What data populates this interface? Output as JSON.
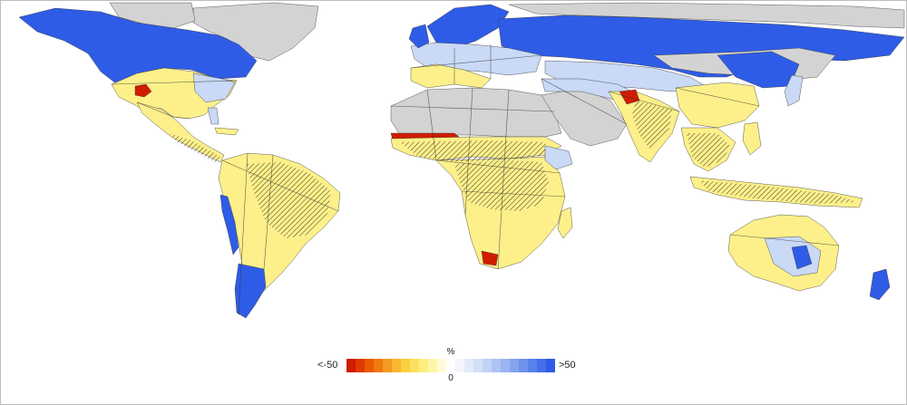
{
  "legend": {
    "unit": "%",
    "min_label": "<-50",
    "max_label": ">50",
    "zero_label": "0",
    "colors": [
      "#d01c00",
      "#e03800",
      "#ea5a00",
      "#f07a10",
      "#f59a20",
      "#f8b830",
      "#fbcf40",
      "#fde060",
      "#fdee80",
      "#fdf6a8",
      "#fffbd8",
      "#ffffff",
      "#f2f5fc",
      "#e2eaf9",
      "#d2dff7",
      "#c0d2f5",
      "#aec4f3",
      "#9ab5f1",
      "#85a4ef",
      "#6f92ed",
      "#5a80ea",
      "#456ee8",
      "#2f5ce6"
    ]
  },
  "map": {
    "colors": {
      "no_data_land": "#d3d3d3",
      "border": "#333333",
      "strong_increase": "#2f5ce6",
      "weak_increase": "#c9d9f6",
      "weak_decrease": "#fdf08a",
      "strong_decrease": "#d01c00",
      "stippling": "#222222"
    }
  }
}
